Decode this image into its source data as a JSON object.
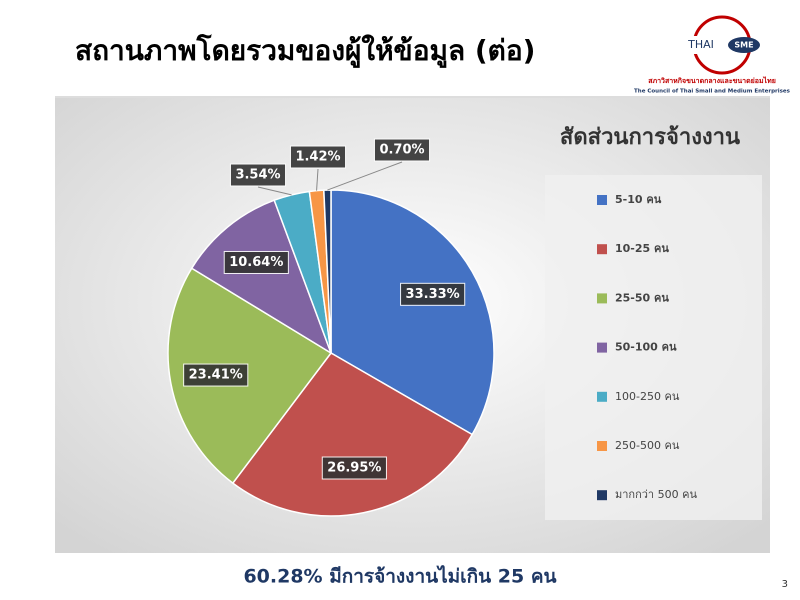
{
  "header": {
    "title": "สถานภาพโดยรวมของผู้ให้ข้อมูล (ต่อ)",
    "logo": {
      "word": "THAI",
      "badge": "SME",
      "org_thai": "สภาวิสาหกิจขนาดกลางและขนาดย่อมไทย",
      "org_english": "The Council of Thai Small and Medium Enterprises"
    }
  },
  "chart_data": {
    "type": "pie",
    "title": "สัดส่วนการจ้างงาน",
    "categories": [
      "5-10 คน",
      "10-25 คน",
      "25-50 คน",
      "50-100 คน",
      "100-250 คน",
      "250-500 คน",
      "มากกว่า 500 คน"
    ],
    "values": [
      33.33,
      26.95,
      23.41,
      10.64,
      3.54,
      1.42,
      0.7
    ],
    "value_labels": [
      "33.33%",
      "26.95%",
      "23.41%",
      "10.64%",
      "3.54%",
      "1.42%",
      "0.70%"
    ],
    "colors": [
      "#4472c4",
      "#c0504d",
      "#9bbb59",
      "#8064a2",
      "#4bacc6",
      "#f79646",
      "#1f3864"
    ],
    "legend": "right"
  },
  "footer": "60.28% มีการจ้างงานไม่เกิน 25 คน",
  "page_number": "3"
}
